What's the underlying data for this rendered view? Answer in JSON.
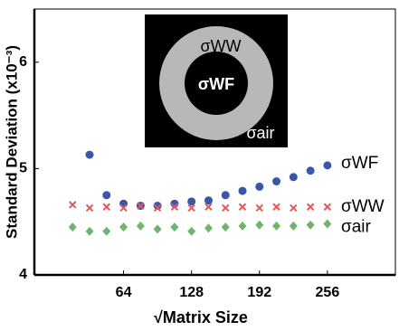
{
  "chart_data": {
    "type": "scatter",
    "y_label": "Standard Deviation (x10⁻³)",
    "x_label": "√Matrix Size",
    "xlim": [
      -20,
      320
    ],
    "ylim": [
      4,
      6.5
    ],
    "xticks": [
      64,
      128,
      192,
      256
    ],
    "yticks": [
      4,
      5,
      6
    ],
    "series": [
      {
        "name": "σWF",
        "color": "#3a56a8",
        "marker": "circle",
        "x": [
          32,
          48,
          64,
          80,
          96,
          112,
          128,
          144,
          160,
          176,
          192,
          208,
          224,
          240,
          256
        ],
        "values": [
          5.13,
          4.75,
          4.67,
          4.65,
          4.65,
          4.67,
          4.69,
          4.7,
          4.75,
          4.79,
          4.83,
          4.88,
          4.92,
          4.98,
          5.03
        ]
      },
      {
        "name": "σWW",
        "color": "#e05a5a",
        "marker": "x",
        "x": [
          16,
          32,
          48,
          64,
          80,
          96,
          112,
          128,
          144,
          160,
          176,
          192,
          208,
          224,
          240,
          256
        ],
        "values": [
          4.66,
          4.63,
          4.64,
          4.63,
          4.65,
          4.63,
          4.64,
          4.63,
          4.64,
          4.63,
          4.64,
          4.63,
          4.64,
          4.63,
          4.64,
          4.64
        ]
      },
      {
        "name": "σair",
        "color": "#6fb36f",
        "marker": "diamond",
        "x": [
          16,
          32,
          48,
          64,
          80,
          96,
          112,
          128,
          144,
          160,
          176,
          192,
          208,
          224,
          240,
          256
        ],
        "values": [
          4.45,
          4.41,
          4.41,
          4.45,
          4.46,
          4.43,
          4.45,
          4.41,
          4.44,
          4.45,
          4.46,
          4.47,
          4.46,
          4.46,
          4.47,
          4.48
        ]
      }
    ],
    "inset": {
      "labels": [
        "σWW",
        "σWF",
        "σair"
      ]
    }
  }
}
